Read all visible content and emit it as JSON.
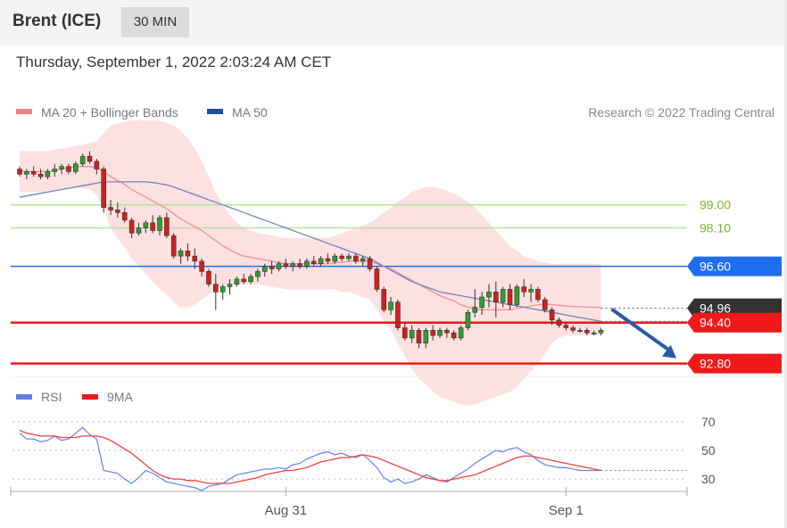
{
  "header": {
    "instrument": "Brent (ICE)",
    "timeframe": "30 MIN",
    "timestamp": "Thursday, September 1, 2022 2:03:24 AM CET"
  },
  "chart_data": [
    {
      "type": "candlestick",
      "title": "",
      "legend": [
        {
          "name": "MA 20 + Bollinger Bands",
          "color": "#f08080"
        },
        {
          "name": "MA 50",
          "color": "#1f4e9c"
        }
      ],
      "credit": "Research © 2022 Trading Central",
      "ylim": [
        92.3,
        102.3
      ],
      "last_price": 94.96,
      "levels": [
        {
          "value": 99.0,
          "label": "99.00",
          "kind": "target",
          "color": "#76b82a"
        },
        {
          "value": 98.1,
          "label": "98.10",
          "kind": "target",
          "color": "#76b82a"
        },
        {
          "value": 96.6,
          "label": "96.60",
          "kind": "pivot",
          "color": "#1f6ef0"
        },
        {
          "value": 94.96,
          "label": "94.96",
          "kind": "last",
          "color": "#333333"
        },
        {
          "value": 94.4,
          "label": "94.40",
          "kind": "support",
          "color": "#f01818"
        },
        {
          "value": 92.8,
          "label": "92.80",
          "kind": "support",
          "color": "#f01818"
        }
      ],
      "candles": [
        {
          "o": 100.4,
          "h": 100.5,
          "l": 100.1,
          "c": 100.2
        },
        {
          "o": 100.2,
          "h": 100.4,
          "l": 100.0,
          "c": 100.3
        },
        {
          "o": 100.3,
          "h": 100.5,
          "l": 100.1,
          "c": 100.2
        },
        {
          "o": 100.2,
          "h": 100.4,
          "l": 100.0,
          "c": 100.1
        },
        {
          "o": 100.1,
          "h": 100.4,
          "l": 100.0,
          "c": 100.3
        },
        {
          "o": 100.3,
          "h": 100.6,
          "l": 100.1,
          "c": 100.4
        },
        {
          "o": 100.4,
          "h": 100.6,
          "l": 100.2,
          "c": 100.5
        },
        {
          "o": 100.5,
          "h": 100.6,
          "l": 100.2,
          "c": 100.3
        },
        {
          "o": 100.3,
          "h": 100.7,
          "l": 100.2,
          "c": 100.6
        },
        {
          "o": 100.6,
          "h": 101.0,
          "l": 100.5,
          "c": 100.9
        },
        {
          "o": 100.9,
          "h": 101.1,
          "l": 100.6,
          "c": 100.7
        },
        {
          "o": 100.7,
          "h": 100.8,
          "l": 100.2,
          "c": 100.4
        },
        {
          "o": 100.4,
          "h": 100.5,
          "l": 98.7,
          "c": 98.9
        },
        {
          "o": 98.9,
          "h": 99.2,
          "l": 98.6,
          "c": 98.8
        },
        {
          "o": 98.8,
          "h": 99.1,
          "l": 98.5,
          "c": 98.7
        },
        {
          "o": 98.7,
          "h": 98.9,
          "l": 98.3,
          "c": 98.4
        },
        {
          "o": 98.4,
          "h": 98.5,
          "l": 97.7,
          "c": 97.9
        },
        {
          "o": 97.9,
          "h": 98.3,
          "l": 97.8,
          "c": 98.1
        },
        {
          "o": 98.1,
          "h": 98.4,
          "l": 97.9,
          "c": 98.3
        },
        {
          "o": 98.3,
          "h": 98.6,
          "l": 97.9,
          "c": 98.0
        },
        {
          "o": 98.0,
          "h": 98.6,
          "l": 97.8,
          "c": 98.5
        },
        {
          "o": 98.5,
          "h": 98.7,
          "l": 97.7,
          "c": 97.8
        },
        {
          "o": 97.8,
          "h": 97.9,
          "l": 96.9,
          "c": 97.0
        },
        {
          "o": 97.0,
          "h": 97.3,
          "l": 96.7,
          "c": 97.2
        },
        {
          "o": 97.2,
          "h": 97.5,
          "l": 96.8,
          "c": 97.0
        },
        {
          "o": 97.0,
          "h": 97.3,
          "l": 96.5,
          "c": 96.8
        },
        {
          "o": 96.8,
          "h": 96.9,
          "l": 96.2,
          "c": 96.4
        },
        {
          "o": 96.4,
          "h": 96.5,
          "l": 95.8,
          "c": 95.9
        },
        {
          "o": 95.9,
          "h": 96.3,
          "l": 94.9,
          "c": 95.6
        },
        {
          "o": 95.6,
          "h": 95.9,
          "l": 95.3,
          "c": 95.8
        },
        {
          "o": 95.8,
          "h": 96.1,
          "l": 95.5,
          "c": 95.9
        },
        {
          "o": 95.9,
          "h": 96.2,
          "l": 95.8,
          "c": 96.1
        },
        {
          "o": 96.1,
          "h": 96.3,
          "l": 95.9,
          "c": 96.0
        },
        {
          "o": 96.0,
          "h": 96.3,
          "l": 95.9,
          "c": 96.2
        },
        {
          "o": 96.2,
          "h": 96.5,
          "l": 96.0,
          "c": 96.4
        },
        {
          "o": 96.4,
          "h": 96.7,
          "l": 96.2,
          "c": 96.6
        },
        {
          "o": 96.6,
          "h": 96.8,
          "l": 96.3,
          "c": 96.5
        },
        {
          "o": 96.5,
          "h": 96.8,
          "l": 96.4,
          "c": 96.7
        },
        {
          "o": 96.7,
          "h": 96.9,
          "l": 96.5,
          "c": 96.6
        },
        {
          "o": 96.6,
          "h": 96.8,
          "l": 96.4,
          "c": 96.7
        },
        {
          "o": 96.7,
          "h": 96.9,
          "l": 96.5,
          "c": 96.6
        },
        {
          "o": 96.6,
          "h": 96.9,
          "l": 96.5,
          "c": 96.8
        },
        {
          "o": 96.8,
          "h": 97.0,
          "l": 96.6,
          "c": 96.7
        },
        {
          "o": 96.7,
          "h": 97.0,
          "l": 96.6,
          "c": 96.9
        },
        {
          "o": 96.9,
          "h": 97.1,
          "l": 96.7,
          "c": 96.8
        },
        {
          "o": 96.8,
          "h": 97.1,
          "l": 96.7,
          "c": 97.0
        },
        {
          "o": 97.0,
          "h": 97.1,
          "l": 96.8,
          "c": 96.9
        },
        {
          "o": 96.9,
          "h": 97.1,
          "l": 96.8,
          "c": 97.0
        },
        {
          "o": 97.0,
          "h": 97.1,
          "l": 96.7,
          "c": 96.8
        },
        {
          "o": 96.8,
          "h": 97.0,
          "l": 96.6,
          "c": 96.9
        },
        {
          "o": 96.9,
          "h": 97.0,
          "l": 96.4,
          "c": 96.5
        },
        {
          "o": 96.5,
          "h": 96.6,
          "l": 95.6,
          "c": 95.7
        },
        {
          "o": 95.7,
          "h": 95.8,
          "l": 94.8,
          "c": 94.9
        },
        {
          "o": 94.9,
          "h": 95.4,
          "l": 94.7,
          "c": 95.2
        },
        {
          "o": 95.2,
          "h": 95.3,
          "l": 94.1,
          "c": 94.2
        },
        {
          "o": 94.2,
          "h": 94.4,
          "l": 93.7,
          "c": 93.8
        },
        {
          "o": 93.8,
          "h": 94.3,
          "l": 93.6,
          "c": 94.1
        },
        {
          "o": 94.1,
          "h": 94.2,
          "l": 93.4,
          "c": 93.6
        },
        {
          "o": 93.6,
          "h": 94.2,
          "l": 93.4,
          "c": 94.1
        },
        {
          "o": 94.1,
          "h": 94.3,
          "l": 93.7,
          "c": 93.9
        },
        {
          "o": 93.9,
          "h": 94.2,
          "l": 93.8,
          "c": 94.1
        },
        {
          "o": 94.1,
          "h": 94.2,
          "l": 93.8,
          "c": 94.0
        },
        {
          "o": 94.0,
          "h": 94.1,
          "l": 93.7,
          "c": 93.8
        },
        {
          "o": 93.8,
          "h": 94.3,
          "l": 93.7,
          "c": 94.2
        },
        {
          "o": 94.2,
          "h": 94.9,
          "l": 94.1,
          "c": 94.8
        },
        {
          "o": 94.8,
          "h": 95.7,
          "l": 94.6,
          "c": 95.0
        },
        {
          "o": 95.0,
          "h": 95.6,
          "l": 94.7,
          "c": 95.4
        },
        {
          "o": 95.4,
          "h": 95.9,
          "l": 95.0,
          "c": 95.6
        },
        {
          "o": 95.6,
          "h": 96.0,
          "l": 94.6,
          "c": 95.2
        },
        {
          "o": 95.2,
          "h": 95.8,
          "l": 95.0,
          "c": 95.7
        },
        {
          "o": 95.7,
          "h": 95.9,
          "l": 94.9,
          "c": 95.1
        },
        {
          "o": 95.1,
          "h": 95.9,
          "l": 95.0,
          "c": 95.8
        },
        {
          "o": 95.8,
          "h": 96.1,
          "l": 95.4,
          "c": 95.6
        },
        {
          "o": 95.6,
          "h": 95.9,
          "l": 95.2,
          "c": 95.7
        },
        {
          "o": 95.7,
          "h": 95.8,
          "l": 95.2,
          "c": 95.3
        },
        {
          "o": 95.3,
          "h": 95.4,
          "l": 94.8,
          "c": 94.9
        },
        {
          "o": 94.9,
          "h": 95.0,
          "l": 94.3,
          "c": 94.5
        },
        {
          "o": 94.5,
          "h": 94.6,
          "l": 94.2,
          "c": 94.3
        },
        {
          "o": 94.3,
          "h": 94.4,
          "l": 94.1,
          "c": 94.2
        },
        {
          "o": 94.2,
          "h": 94.3,
          "l": 94.0,
          "c": 94.1
        },
        {
          "o": 94.1,
          "h": 94.2,
          "l": 94.0,
          "c": 94.1
        },
        {
          "o": 94.1,
          "h": 94.2,
          "l": 93.9,
          "c": 94.0
        },
        {
          "o": 94.0,
          "h": 94.1,
          "l": 93.9,
          "c": 94.0
        },
        {
          "o": 94.0,
          "h": 94.2,
          "l": 93.9,
          "c": 94.1
        }
      ],
      "ma20": [
        100.3,
        100.3,
        100.3,
        100.3,
        100.3,
        100.35,
        100.4,
        100.45,
        100.5,
        100.5,
        100.5,
        100.45,
        100.3,
        100.1,
        99.95,
        99.8,
        99.6,
        99.45,
        99.3,
        99.15,
        99.0,
        98.85,
        98.65,
        98.45,
        98.3,
        98.15,
        98.0,
        97.8,
        97.6,
        97.4,
        97.25,
        97.1,
        97.0,
        96.95,
        96.9,
        96.85,
        96.8,
        96.75,
        96.7,
        96.7,
        96.7,
        96.7,
        96.7,
        96.7,
        96.7,
        96.75,
        96.75,
        96.8,
        96.8,
        96.8,
        96.8,
        96.7,
        96.6,
        96.5,
        96.35,
        96.2,
        96.05,
        95.9,
        95.75,
        95.6,
        95.45,
        95.35,
        95.25,
        95.1,
        95.0,
        94.95,
        94.9,
        94.9,
        94.9,
        94.9,
        94.9,
        94.95,
        95.0,
        95.05,
        95.1,
        95.12,
        95.1,
        95.08,
        95.05,
        95.03,
        95.02,
        95.0,
        95.0,
        95.0
      ],
      "bb_upper": [
        101.1,
        101.1,
        101.1,
        101.1,
        101.1,
        101.15,
        101.2,
        101.25,
        101.3,
        101.35,
        101.4,
        101.5,
        101.8,
        102.1,
        102.2,
        102.25,
        102.3,
        102.3,
        102.3,
        102.3,
        102.3,
        102.2,
        102.1,
        101.9,
        101.6,
        101.2,
        100.7,
        100.1,
        99.5,
        99.0,
        98.6,
        98.3,
        98.1,
        98.0,
        97.9,
        97.85,
        97.8,
        97.75,
        97.7,
        97.7,
        97.7,
        97.7,
        97.7,
        97.7,
        97.7,
        97.8,
        97.9,
        98.0,
        98.1,
        98.2,
        98.3,
        98.5,
        98.7,
        98.9,
        99.1,
        99.3,
        99.5,
        99.6,
        99.7,
        99.7,
        99.65,
        99.55,
        99.45,
        99.3,
        99.1,
        98.9,
        98.6,
        98.3,
        98.0,
        97.7,
        97.4,
        97.2,
        97.0,
        96.9,
        96.8,
        96.75,
        96.7,
        96.7,
        96.7,
        96.7,
        96.7,
        96.7,
        96.7,
        96.7
      ],
      "bb_lower": [
        99.5,
        99.5,
        99.5,
        99.5,
        99.5,
        99.55,
        99.6,
        99.65,
        99.7,
        99.65,
        99.6,
        99.4,
        98.8,
        98.1,
        97.7,
        97.35,
        96.9,
        96.6,
        96.3,
        96.0,
        95.7,
        95.5,
        95.2,
        95.0,
        95.0,
        95.1,
        95.3,
        95.5,
        95.7,
        95.8,
        95.9,
        95.9,
        95.9,
        95.9,
        95.9,
        95.85,
        95.8,
        95.75,
        95.7,
        95.7,
        95.7,
        95.7,
        95.7,
        95.7,
        95.7,
        95.7,
        95.6,
        95.6,
        95.5,
        95.4,
        95.3,
        94.9,
        94.5,
        94.1,
        93.6,
        93.1,
        92.6,
        92.2,
        92.0,
        91.7,
        91.5,
        91.4,
        91.3,
        91.2,
        91.15,
        91.2,
        91.3,
        91.4,
        91.5,
        91.6,
        91.7,
        91.9,
        92.2,
        92.5,
        92.8,
        93.2,
        93.6,
        93.8,
        93.9,
        93.9,
        93.9,
        93.9,
        93.9,
        93.9
      ],
      "ma50": [
        99.3,
        99.35,
        99.4,
        99.45,
        99.5,
        99.55,
        99.6,
        99.65,
        99.7,
        99.75,
        99.8,
        99.85,
        99.9,
        99.9,
        99.9,
        99.9,
        99.9,
        99.9,
        99.9,
        99.87,
        99.83,
        99.78,
        99.7,
        99.6,
        99.5,
        99.4,
        99.3,
        99.2,
        99.1,
        99.0,
        98.9,
        98.8,
        98.7,
        98.6,
        98.5,
        98.4,
        98.3,
        98.2,
        98.1,
        98.0,
        97.9,
        97.8,
        97.7,
        97.6,
        97.5,
        97.4,
        97.3,
        97.2,
        97.1,
        97.0,
        96.9,
        96.75,
        96.6,
        96.45,
        96.3,
        96.15,
        96.0,
        95.9,
        95.8,
        95.7,
        95.6,
        95.55,
        95.5,
        95.45,
        95.4,
        95.35,
        95.3,
        95.25,
        95.2,
        95.15,
        95.1,
        95.05,
        95.0,
        94.95,
        94.9,
        94.85,
        94.8,
        94.75,
        94.7,
        94.65,
        94.6,
        94.55,
        94.5,
        94.45
      ]
    },
    {
      "type": "line",
      "title": "",
      "legend": [
        {
          "name": "RSI",
          "color": "#5b7fe0"
        },
        {
          "name": "9MA",
          "color": "#f01818"
        }
      ],
      "yticks": [
        70,
        50,
        30
      ],
      "ylim": [
        22,
        78
      ],
      "x_ticks": [
        {
          "label": "Aug 31",
          "index": 38
        },
        {
          "label": "Sep 1",
          "index": 78
        }
      ],
      "series": [
        {
          "name": "RSI",
          "values": [
            62,
            58,
            58,
            56,
            57,
            60,
            57,
            58,
            62,
            66,
            61,
            58,
            36,
            35,
            34,
            30,
            27,
            31,
            36,
            34,
            31,
            28,
            27,
            26,
            25,
            24,
            22,
            25,
            26,
            27,
            30,
            33,
            34,
            35,
            36,
            37,
            37,
            38,
            37,
            40,
            41,
            44,
            46,
            48,
            49,
            47,
            48,
            46,
            45,
            47,
            43,
            38,
            31,
            28,
            30,
            27,
            28,
            30,
            33,
            31,
            29,
            28,
            31,
            34,
            37,
            41,
            44,
            47,
            50,
            49,
            51,
            52,
            49,
            47,
            43,
            40,
            39,
            38,
            38,
            37,
            36,
            36,
            36,
            36
          ]
        },
        {
          "name": "9MA",
          "values": [
            64,
            62,
            61,
            60,
            60,
            60,
            59,
            59,
            59,
            60,
            60,
            60,
            59,
            57,
            54,
            51,
            48,
            44,
            40,
            36,
            33,
            31,
            30,
            30,
            29,
            29,
            28,
            27,
            27,
            27,
            27,
            28,
            29,
            30,
            31,
            33,
            34,
            35,
            36,
            36,
            37,
            38,
            40,
            42,
            43,
            44,
            45,
            45,
            46,
            47,
            46,
            45,
            43,
            41,
            39,
            37,
            35,
            33,
            31,
            30,
            29,
            29,
            30,
            31,
            32,
            33,
            35,
            37,
            39,
            41,
            43,
            45,
            46,
            46,
            45,
            44,
            43,
            42,
            41,
            40,
            39,
            38,
            37,
            36
          ]
        }
      ]
    }
  ]
}
